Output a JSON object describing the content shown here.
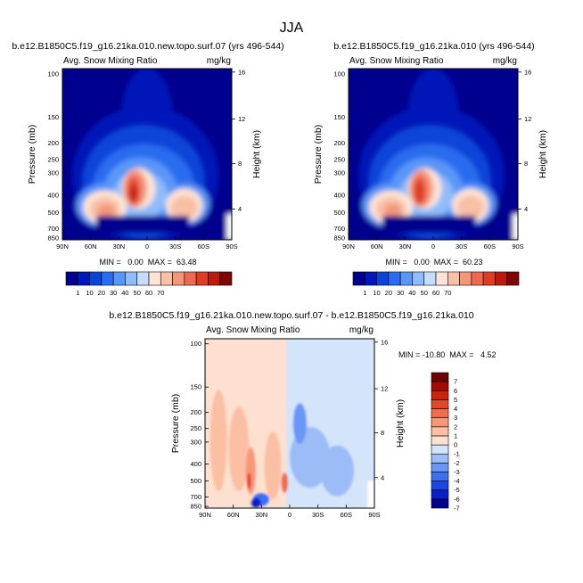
{
  "figure_title": "JJA",
  "chart_data": [
    {
      "type": "heatmap",
      "title": "b.e12.B1850C5.f19_g16.21ka.010.new.topo.surf.07 (yrs 496-544)",
      "subtitle_left": "Avg. Snow Mixing Ratio",
      "subtitle_right": "mg/kg",
      "ylabel": "Pressure (mb)",
      "ylabel_right": "Height (km)",
      "x_ticks": [
        "90N",
        "60N",
        "30N",
        "0",
        "30S",
        "60S",
        "90S"
      ],
      "y_ticks": [
        "100",
        "150",
        "200",
        "250",
        "300",
        "400",
        "500",
        "700",
        "850"
      ],
      "y_ticks_right": [
        "16",
        "12",
        "8",
        "4"
      ],
      "stats": "MIN =   0.00  MAX =  63.48",
      "min": 0.0,
      "max": 63.48,
      "colorbar_ticks": [
        "1",
        "10",
        "20",
        "30",
        "40",
        "50",
        "60",
        "70"
      ]
    },
    {
      "type": "heatmap",
      "title": "b.e12.B1850C5.f19_g16.21ka.010 (yrs 496-544)",
      "subtitle_left": "Avg. Snow Mixing Ratio",
      "subtitle_right": "mg/kg",
      "ylabel": "Pressure (mb)",
      "ylabel_right": "Height (km)",
      "x_ticks": [
        "90N",
        "60N",
        "30N",
        "0",
        "30S",
        "60S",
        "90S"
      ],
      "y_ticks": [
        "100",
        "150",
        "200",
        "250",
        "300",
        "400",
        "500",
        "700",
        "850"
      ],
      "y_ticks_right": [
        "16",
        "12",
        "8",
        "4"
      ],
      "stats": "MIN =   0.00  MAX =  60.23",
      "min": 0.0,
      "max": 60.23,
      "colorbar_ticks": [
        "1",
        "10",
        "20",
        "30",
        "40",
        "50",
        "60",
        "70"
      ]
    },
    {
      "type": "heatmap",
      "title": "b.e12.B1850C5.f19_g16.21ka.010.new.topo.surf.07 - b.e12.B1850C5.f19_g16.21ka.010",
      "subtitle_left": "Avg. Snow Mixing Ratio",
      "subtitle_right": "mg/kg",
      "ylabel": "Pressure (mb)",
      "ylabel_right": "Height (km)",
      "x_ticks": [
        "90N",
        "60N",
        "30N",
        "0",
        "30S",
        "60S",
        "90S"
      ],
      "y_ticks": [
        "100",
        "150",
        "200",
        "250",
        "300",
        "400",
        "500",
        "700",
        "850"
      ],
      "y_ticks_right": [
        "16",
        "12",
        "8",
        "4"
      ],
      "stats": "MIN = -10.80  MAX =   4.52",
      "min": -10.8,
      "max": 4.52,
      "colorbar_ticks": [
        "7",
        "6",
        "5",
        "4",
        "3",
        "2",
        "1",
        "0",
        "-1",
        "-2",
        "-3",
        "-4",
        "-5",
        "-6",
        "-7"
      ]
    }
  ],
  "palettes": {
    "abs": [
      "#00008f",
      "#0018b8",
      "#0a44d8",
      "#2a6cf0",
      "#5a96f7",
      "#8fbcfa",
      "#c6dcfc",
      "#fde4d6",
      "#f9c0a6",
      "#f4967a",
      "#ec6a4f",
      "#dd3c25",
      "#bb1a0e",
      "#7e0606"
    ],
    "diff": [
      "#00008f",
      "#0a1fc4",
      "#1c46e0",
      "#3a6ff0",
      "#6a96f5",
      "#9cbcf8",
      "#d4e4fb",
      "#fde0cf",
      "#fbc0a4",
      "#f7977a",
      "#ef6c4f",
      "#e24728",
      "#c9240f",
      "#a10b06",
      "#6e0303"
    ]
  }
}
